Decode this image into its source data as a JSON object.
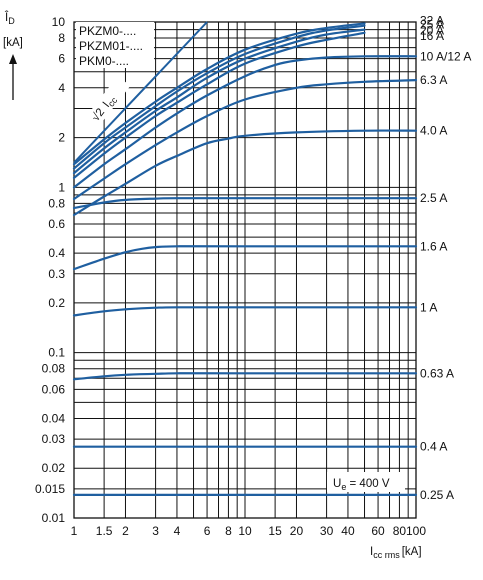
{
  "chart_data": {
    "type": "line",
    "y_axis": {
      "symbol": "Î",
      "subscript": "D",
      "unit": "[kA]",
      "scale": "log",
      "range": [
        0.01,
        10
      ],
      "ticks": [
        {
          "v": 10,
          "t": "10"
        },
        {
          "v": 8,
          "t": "8"
        },
        {
          "v": 6,
          "t": "6"
        },
        {
          "v": 4,
          "t": "4"
        },
        {
          "v": 2,
          "t": "2"
        },
        {
          "v": 1,
          "t": "1"
        },
        {
          "v": 0.8,
          "t": "0.8"
        },
        {
          "v": 0.6,
          "t": "0.6"
        },
        {
          "v": 0.4,
          "t": "0.4"
        },
        {
          "v": 0.3,
          "t": "0.3"
        },
        {
          "v": 0.2,
          "t": "0.2"
        },
        {
          "v": 0.1,
          "t": "0.1"
        },
        {
          "v": 0.08,
          "t": "0.08"
        },
        {
          "v": 0.06,
          "t": "0.06"
        },
        {
          "v": 0.04,
          "t": "0.04"
        },
        {
          "v": 0.03,
          "t": "0.03"
        },
        {
          "v": 0.02,
          "t": "0.02"
        },
        {
          "v": 0.015,
          "t": "0.015"
        },
        {
          "v": 0.01,
          "t": "0.01"
        }
      ]
    },
    "x_axis": {
      "symbol": "I",
      "subscript": "cc rms",
      "unit": "[kA]",
      "scale": "log",
      "range": [
        1,
        100
      ],
      "ticks": [
        {
          "v": 1,
          "t": "1"
        },
        {
          "v": 1.5,
          "t": "1.5"
        },
        {
          "v": 2,
          "t": "2"
        },
        {
          "v": 3,
          "t": "3"
        },
        {
          "v": 4,
          "t": "4"
        },
        {
          "v": 6,
          "t": "6"
        },
        {
          "v": 8,
          "t": "8"
        },
        {
          "v": 10,
          "t": "10"
        },
        {
          "v": 15,
          "t": "15"
        },
        {
          "v": 20,
          "t": "20"
        },
        {
          "v": 30,
          "t": "30"
        },
        {
          "v": 40,
          "t": "40"
        },
        {
          "v": 60,
          "t": "60"
        },
        {
          "v": 80,
          "t": "80"
        },
        {
          "v": 100,
          "t": "100"
        }
      ]
    },
    "grid_x": [
      1,
      1.5,
      2,
      3,
      4,
      5,
      6,
      7,
      8,
      9,
      10,
      15,
      20,
      30,
      40,
      50,
      60,
      70,
      80,
      90,
      100
    ],
    "grid_y": [
      0.01,
      0.015,
      0.02,
      0.03,
      0.04,
      0.05,
      0.06,
      0.07,
      0.08,
      0.09,
      0.1,
      0.2,
      0.3,
      0.4,
      0.5,
      0.6,
      0.7,
      0.8,
      0.9,
      1,
      2,
      3,
      4,
      5,
      6,
      7,
      8,
      9,
      10
    ],
    "product_labels": [
      "PKZM0-....",
      "PKZM01-....",
      "PKM0-...."
    ],
    "reference_line": {
      "label_root": "√2",
      "label_symbol": "I",
      "label_subscript": "cc",
      "x": [
        1,
        6
      ],
      "y": [
        1.41,
        10
      ]
    },
    "condition": {
      "symbol": "U",
      "subscript": "e",
      "value": " = 400 V"
    },
    "series": [
      {
        "name": "32 A",
        "x": [
          1,
          1.5,
          2,
          3,
          4,
          6,
          10,
          20,
          30,
          50
        ],
        "y": [
          1.38,
          1.95,
          2.45,
          3.3,
          4.0,
          5.2,
          6.8,
          8.5,
          9.2,
          9.8
        ]
      },
      {
        "name": "25 A",
        "x": [
          1,
          1.5,
          2,
          3,
          4,
          6,
          10,
          20,
          30,
          50
        ],
        "y": [
          1.3,
          1.85,
          2.3,
          3.1,
          3.8,
          4.9,
          6.4,
          8.1,
          8.9,
          9.5
        ]
      },
      {
        "name": "20 A",
        "x": [
          1,
          1.5,
          2,
          3,
          4,
          6,
          10,
          20,
          30,
          50
        ],
        "y": [
          1.22,
          1.72,
          2.15,
          2.9,
          3.5,
          4.6,
          6.0,
          7.6,
          8.4,
          9.0
        ]
      },
      {
        "name": "16 A",
        "x": [
          1,
          1.5,
          2,
          3,
          4,
          6,
          10,
          20,
          30,
          50
        ],
        "y": [
          1.14,
          1.6,
          2.0,
          2.7,
          3.25,
          4.2,
          5.6,
          7.1,
          7.8,
          8.6
        ]
      },
      {
        "name": "10 A/12 A",
        "x": [
          1,
          1.5,
          2,
          3,
          4,
          6,
          10,
          15,
          20,
          30,
          50,
          100
        ],
        "y": [
          1.0,
          1.38,
          1.7,
          2.3,
          2.8,
          3.6,
          4.7,
          5.5,
          5.85,
          6.1,
          6.2,
          6.2
        ]
      },
      {
        "name": "6.3 A",
        "x": [
          1,
          1.5,
          2,
          3,
          4,
          6,
          10,
          20,
          30,
          50,
          100
        ],
        "y": [
          0.85,
          1.13,
          1.38,
          1.8,
          2.15,
          2.7,
          3.4,
          4.0,
          4.2,
          4.35,
          4.45
        ]
      },
      {
        "name": "4.0 A",
        "x": [
          1,
          1.5,
          2,
          3,
          4,
          6,
          8,
          10,
          20,
          50,
          100
        ],
        "y": [
          0.68,
          0.88,
          1.05,
          1.35,
          1.55,
          1.85,
          1.97,
          2.05,
          2.15,
          2.2,
          2.2
        ]
      },
      {
        "name": "2.5 A",
        "x": [
          1,
          1.5,
          2,
          3,
          4,
          10,
          100
        ],
        "y": [
          0.75,
          0.81,
          0.84,
          0.855,
          0.86,
          0.86,
          0.86
        ]
      },
      {
        "name": "1.6 A",
        "x": [
          1,
          1.5,
          2,
          2.5,
          3,
          4,
          10,
          100
        ],
        "y": [
          0.32,
          0.37,
          0.405,
          0.425,
          0.435,
          0.44,
          0.44,
          0.44
        ]
      },
      {
        "name": "1 A",
        "x": [
          1,
          1.5,
          2,
          3,
          4,
          10,
          100
        ],
        "y": [
          0.168,
          0.178,
          0.183,
          0.187,
          0.188,
          0.188,
          0.188
        ]
      },
      {
        "name": "0.63 A",
        "x": [
          1,
          1.5,
          2,
          3,
          4,
          10,
          100
        ],
        "y": [
          0.069,
          0.072,
          0.0735,
          0.0745,
          0.075,
          0.075,
          0.075
        ]
      },
      {
        "name": "0.4 A",
        "x": [
          1,
          100
        ],
        "y": [
          0.027,
          0.027
        ]
      },
      {
        "name": "0.25 A",
        "x": [
          1,
          100
        ],
        "y": [
          0.0138,
          0.0138
        ]
      }
    ]
  }
}
